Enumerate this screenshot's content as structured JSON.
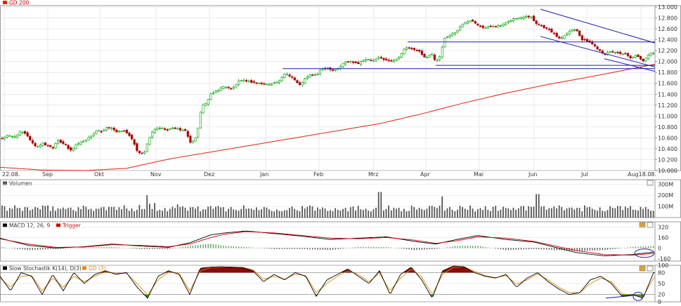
{
  "colors": {
    "candle_up": "#00a000",
    "candle_down": "#aa0000",
    "sma": "#dd2211",
    "trend": "#1a1aa8",
    "macd_line": "#000000",
    "trigger_line": "#cc0000",
    "stoch_k": "#000000",
    "stoch_d": "#e08a00",
    "overbought_fill": "#8b0a0a",
    "oversold_fill": "#1a9a1a",
    "volume_bar": "#555555",
    "grid": "#dcdcdc",
    "panel_border": "#9a9a9a"
  },
  "chart_data": [
    {
      "type": "candlestick",
      "legend": [
        {
          "name": "GD 200",
          "color": "#dd2211"
        }
      ],
      "x_tick_labels": [
        "22.08.",
        "Sep",
        "Okt",
        "Nov",
        "Dez",
        "Jan",
        "Feb",
        "Mrz",
        "Apr",
        "Mai",
        "Jun",
        "Jul",
        "Aug18.08."
      ],
      "y_tick_labels": [
        "13.000",
        "12.800",
        "12.600",
        "12.400",
        "12.200",
        "12.000",
        "11.800",
        "11.600",
        "11.400",
        "11.200",
        "11.000",
        "10.800",
        "10.600",
        "10.400",
        "10.200",
        "10.000"
      ],
      "ylim": [
        10000,
        13000
      ],
      "close_path_x": [
        0,
        10,
        20,
        30,
        38,
        45,
        52,
        60,
        67,
        75,
        82,
        92,
        100,
        108,
        115,
        124,
        131,
        138,
        145,
        150,
        158,
        166,
        175,
        185,
        196,
        205,
        215,
        220,
        228,
        238,
        246,
        255,
        265,
        270,
        276,
        281,
        287,
        293,
        300,
        310,
        320,
        330,
        340,
        350,
        360,
        370,
        380,
        390,
        398,
        405,
        410,
        417,
        426,
        434,
        442,
        450,
        458,
        466,
        474,
        482,
        490,
        500,
        510,
        520,
        530,
        540,
        550,
        560,
        568,
        576,
        584,
        590,
        598,
        606,
        614,
        620,
        626,
        632,
        640,
        650,
        660,
        670,
        680,
        690,
        700,
        710,
        720,
        730,
        740,
        748,
        756,
        762,
        770,
        778,
        786,
        792,
        798,
        805,
        812,
        820,
        828,
        836,
        844,
        852,
        860,
        870,
        880,
        890,
        898,
        904,
        910,
        916,
        922,
        928,
        932
      ],
      "close_path_y": [
        10570,
        10640,
        10620,
        10710,
        10660,
        10520,
        10430,
        10500,
        10460,
        10420,
        10560,
        10480,
        10360,
        10470,
        10520,
        10580,
        10640,
        10740,
        10700,
        10770,
        10800,
        10700,
        10740,
        10640,
        10340,
        10320,
        10680,
        10760,
        10780,
        10740,
        10780,
        10760,
        10720,
        10520,
        10540,
        10700,
        11200,
        11230,
        11400,
        11480,
        11550,
        11490,
        11640,
        11650,
        11620,
        11600,
        11580,
        11610,
        11640,
        11780,
        11760,
        11700,
        11560,
        11680,
        11760,
        11750,
        11860,
        11890,
        11840,
        11880,
        11990,
        12000,
        11970,
        12050,
        12010,
        12080,
        12020,
        12010,
        12090,
        12240,
        12250,
        12200,
        12180,
        12050,
        12160,
        12000,
        12080,
        12420,
        12480,
        12560,
        12710,
        12770,
        12680,
        12610,
        12660,
        12650,
        12700,
        12780,
        12800,
        12840,
        12820,
        12710,
        12660,
        12600,
        12540,
        12460,
        12420,
        12510,
        12570,
        12600,
        12400,
        12380,
        12310,
        12220,
        12140,
        12180,
        12160,
        12130,
        12050,
        12100,
        12070,
        12000,
        12120,
        12180,
        12130
      ],
      "sma_path_x": [
        0,
        60,
        120,
        180,
        240,
        300,
        360,
        420,
        480,
        540,
        600,
        660,
        720,
        780,
        840,
        900,
        932
      ],
      "sma_path_y": [
        10060,
        10010,
        10000,
        10040,
        10210,
        10340,
        10470,
        10600,
        10730,
        10860,
        11040,
        11240,
        11420,
        11580,
        11720,
        11870,
        11950
      ],
      "horizontal_levels": [
        {
          "y": 11870,
          "from_x": 402,
          "to_x": 932
        },
        {
          "y": 12360,
          "from_x": 580,
          "to_x": 932
        },
        {
          "y": 11930,
          "from_x": 620,
          "to_x": 932
        }
      ],
      "channel_lines": [
        {
          "x1": 769,
          "y1": 12960,
          "x2": 932,
          "y2": 12340
        },
        {
          "x1": 769,
          "y1": 12460,
          "x2": 932,
          "y2": 11900
        },
        {
          "x1": 860,
          "y1": 12050,
          "x2": 932,
          "y2": 11820
        }
      ]
    },
    {
      "type": "bar",
      "title": "Volumen",
      "y_tick_labels": [
        "300M",
        "200M",
        "100M"
      ],
      "ylim": [
        0,
        340
      ],
      "volume_units": "M",
      "peaks": [
        {
          "x": 210,
          "value": 200
        },
        {
          "x": 540,
          "value": 230
        },
        {
          "x": 630,
          "value": 190
        },
        {
          "x": 765,
          "value": 210
        }
      ]
    },
    {
      "type": "line",
      "legend": [
        {
          "name": "MACD 12, 26, 9",
          "color": "#000000"
        },
        {
          "name": "Trigger",
          "color": "#cc0000"
        }
      ],
      "y_tick_labels": [
        "320",
        "160",
        "0",
        "-160"
      ],
      "ylim": [
        -200,
        400
      ],
      "series": [
        {
          "name": "MACD 12, 26, 9",
          "x": [
            0,
            40,
            80,
            120,
            160,
            200,
            240,
            270,
            300,
            320,
            350,
            390,
            430,
            470,
            510,
            550,
            590,
            620,
            650,
            680,
            720,
            760,
            790,
            820,
            860,
            900,
            932
          ],
          "y": [
            150,
            40,
            0,
            20,
            60,
            30,
            10,
            80,
            200,
            230,
            260,
            220,
            180,
            130,
            150,
            170,
            100,
            60,
            130,
            190,
            130,
            90,
            10,
            -70,
            -120,
            -100,
            -60
          ]
        },
        {
          "name": "Trigger",
          "x": [
            0,
            40,
            80,
            120,
            160,
            200,
            240,
            270,
            300,
            320,
            350,
            390,
            430,
            470,
            510,
            550,
            590,
            620,
            650,
            680,
            720,
            760,
            790,
            820,
            860,
            900,
            932
          ],
          "y": [
            140,
            60,
            10,
            15,
            50,
            40,
            20,
            60,
            160,
            210,
            250,
            230,
            190,
            150,
            140,
            160,
            120,
            70,
            110,
            170,
            150,
            100,
            30,
            -40,
            -100,
            -110,
            -80
          ]
        }
      ]
    },
    {
      "type": "line",
      "legend": [
        {
          "name": "Slow Stochastik K(14), D(3)",
          "color": "#000000"
        },
        {
          "name": "GD (3)",
          "color": "#e08a00"
        }
      ],
      "y_tick_labels": [
        "100",
        "80",
        "50",
        "20",
        "0"
      ],
      "ylim": [
        0,
        100
      ],
      "series": [
        {
          "name": "Slow Stochastik K(14), D(3)",
          "x": [
            0,
            15,
            30,
            45,
            60,
            75,
            90,
            105,
            120,
            135,
            150,
            165,
            180,
            195,
            210,
            225,
            240,
            255,
            270,
            285,
            300,
            315,
            330,
            345,
            360,
            375,
            390,
            405,
            420,
            435,
            450,
            465,
            480,
            495,
            510,
            525,
            540,
            555,
            570,
            585,
            600,
            615,
            630,
            645,
            660,
            675,
            690,
            705,
            720,
            735,
            750,
            765,
            780,
            795,
            810,
            825,
            840,
            855,
            870,
            885,
            900,
            915,
            930
          ],
          "y": [
            70,
            30,
            80,
            70,
            20,
            75,
            30,
            80,
            50,
            75,
            85,
            75,
            80,
            40,
            10,
            70,
            85,
            75,
            20,
            92,
            95,
            96,
            95,
            94,
            85,
            55,
            75,
            60,
            80,
            70,
            15,
            60,
            75,
            90,
            70,
            50,
            85,
            20,
            75,
            95,
            60,
            10,
            85,
            98,
            96,
            80,
            70,
            65,
            75,
            40,
            65,
            80,
            55,
            35,
            20,
            25,
            60,
            70,
            50,
            15,
            20,
            10,
            80
          ]
        },
        {
          "name": "GD (3)",
          "x": [
            0,
            15,
            30,
            45,
            60,
            75,
            90,
            105,
            120,
            135,
            150,
            165,
            180,
            195,
            210,
            225,
            240,
            255,
            270,
            285,
            300,
            315,
            330,
            345,
            360,
            375,
            390,
            405,
            420,
            435,
            450,
            465,
            480,
            495,
            510,
            525,
            540,
            555,
            570,
            585,
            600,
            615,
            630,
            645,
            660,
            675,
            690,
            705,
            720,
            735,
            750,
            765,
            780,
            795,
            810,
            825,
            840,
            855,
            870,
            885,
            900,
            915,
            930
          ],
          "y": [
            65,
            40,
            70,
            72,
            30,
            65,
            40,
            70,
            55,
            70,
            82,
            78,
            78,
            50,
            18,
            60,
            82,
            78,
            30,
            85,
            94,
            95,
            95,
            94,
            88,
            62,
            70,
            62,
            75,
            72,
            25,
            50,
            70,
            85,
            75,
            55,
            78,
            30,
            65,
            90,
            68,
            20,
            75,
            95,
            96,
            84,
            72,
            66,
            72,
            48,
            60,
            76,
            60,
            40,
            25,
            25,
            50,
            65,
            55,
            22,
            18,
            14,
            65
          ]
        }
      ]
    }
  ]
}
